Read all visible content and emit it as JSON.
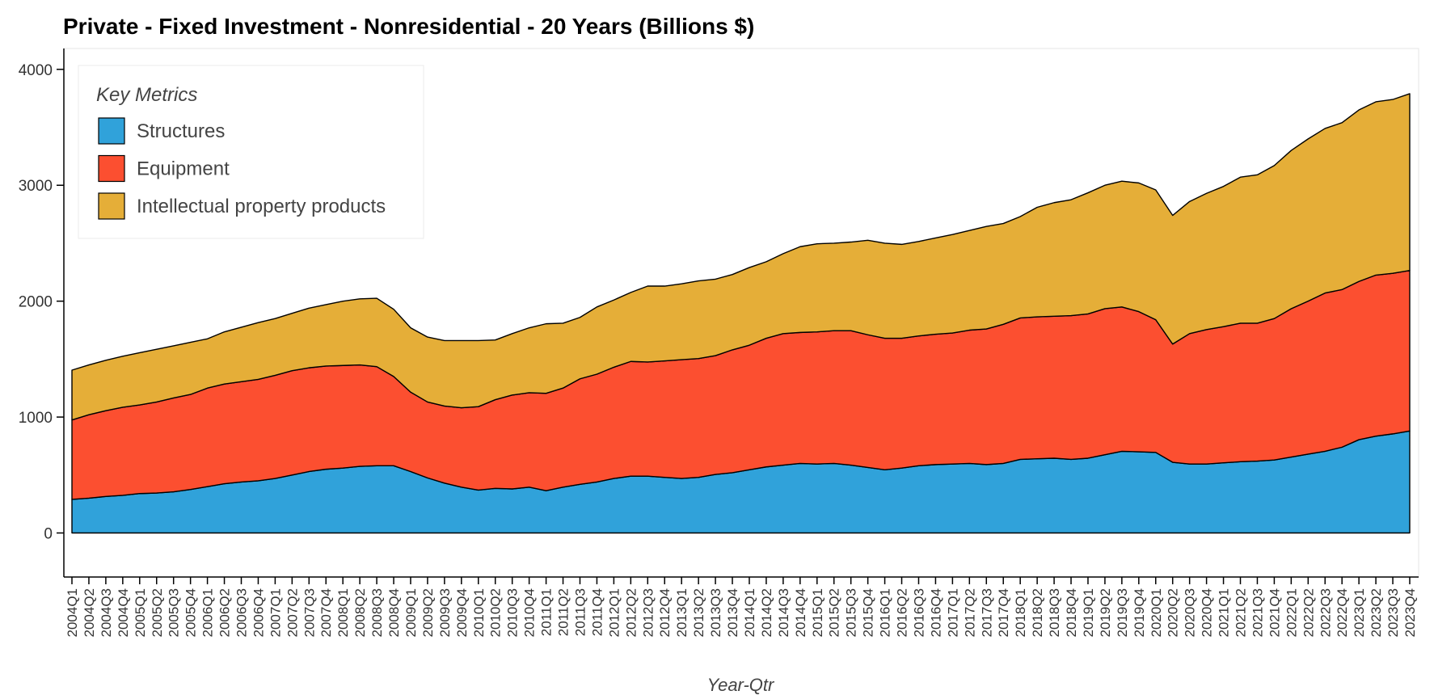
{
  "chart_data": {
    "type": "stacked_area",
    "title": "Private - Fixed Investment - Nonresidential - 20 Years (Billions $)",
    "x_label": "Year-Qtr",
    "legend_title": "Key Metrics",
    "legend_position": "top-left",
    "ylim": [
      -380,
      4180
    ],
    "yticks": [
      0,
      1000,
      2000,
      3000,
      4000
    ],
    "categories": [
      "2004Q1",
      "2004Q2",
      "2004Q3",
      "2004Q4",
      "2005Q1",
      "2005Q2",
      "2005Q3",
      "2005Q4",
      "2006Q1",
      "2006Q2",
      "2006Q3",
      "2006Q4",
      "2007Q1",
      "2007Q2",
      "2007Q3",
      "2007Q4",
      "2008Q1",
      "2008Q2",
      "2008Q3",
      "2008Q4",
      "2009Q1",
      "2009Q2",
      "2009Q3",
      "2009Q4",
      "2010Q1",
      "2010Q2",
      "2010Q3",
      "2010Q4",
      "2011Q1",
      "2011Q2",
      "2011Q3",
      "2011Q4",
      "2012Q1",
      "2012Q2",
      "2012Q3",
      "2012Q4",
      "2013Q1",
      "2013Q2",
      "2013Q3",
      "2013Q4",
      "2014Q1",
      "2014Q2",
      "2014Q3",
      "2014Q4",
      "2015Q1",
      "2015Q2",
      "2015Q3",
      "2015Q4",
      "2016Q1",
      "2016Q2",
      "2016Q3",
      "2016Q4",
      "2017Q1",
      "2017Q2",
      "2017Q3",
      "2017Q4",
      "2018Q1",
      "2018Q2",
      "2018Q3",
      "2018Q4",
      "2019Q1",
      "2019Q2",
      "2019Q3",
      "2019Q4",
      "2020Q1",
      "2020Q2",
      "2020Q3",
      "2020Q4",
      "2021Q1",
      "2021Q2",
      "2021Q3",
      "2021Q4",
      "2022Q1",
      "2022Q2",
      "2022Q3",
      "2022Q4",
      "2023Q1",
      "2023Q2",
      "2023Q3",
      "2023Q4"
    ],
    "series": [
      {
        "name": "Structures",
        "color": "#30a2da",
        "values": [
          290,
          300,
          315,
          325,
          340,
          345,
          355,
          375,
          400,
          425,
          440,
          450,
          470,
          500,
          530,
          550,
          560,
          575,
          580,
          580,
          530,
          475,
          430,
          395,
          370,
          385,
          380,
          395,
          365,
          395,
          420,
          440,
          470,
          490,
          490,
          480,
          470,
          480,
          505,
          520,
          545,
          570,
          585,
          600,
          595,
          600,
          585,
          565,
          545,
          560,
          580,
          590,
          595,
          600,
          590,
          600,
          635,
          640,
          645,
          635,
          645,
          675,
          705,
          700,
          695,
          610,
          595,
          595,
          605,
          615,
          620,
          630,
          655,
          680,
          705,
          740,
          805,
          835,
          855,
          880
        ]
      },
      {
        "name": "Equipment",
        "color": "#fc4f30",
        "values": [
          685,
          720,
          740,
          760,
          765,
          785,
          810,
          820,
          850,
          860,
          865,
          875,
          890,
          900,
          895,
          890,
          885,
          875,
          855,
          770,
          685,
          655,
          665,
          685,
          720,
          765,
          810,
          815,
          840,
          855,
          910,
          930,
          960,
          990,
          985,
          1005,
          1025,
          1025,
          1025,
          1060,
          1075,
          1110,
          1135,
          1130,
          1140,
          1145,
          1160,
          1145,
          1135,
          1120,
          1120,
          1125,
          1130,
          1150,
          1170,
          1200,
          1220,
          1225,
          1225,
          1240,
          1245,
          1260,
          1245,
          1210,
          1145,
          1020,
          1125,
          1160,
          1175,
          1195,
          1190,
          1220,
          1280,
          1320,
          1365,
          1360,
          1365,
          1390,
          1385,
          1385
        ]
      },
      {
        "name": "Intellectual property products",
        "color": "#e5ae38",
        "values": [
          430,
          430,
          435,
          440,
          450,
          455,
          450,
          450,
          425,
          450,
          470,
          490,
          490,
          495,
          515,
          530,
          555,
          570,
          590,
          580,
          555,
          560,
          565,
          580,
          570,
          515,
          530,
          560,
          600,
          560,
          530,
          580,
          580,
          595,
          655,
          645,
          655,
          670,
          660,
          650,
          670,
          660,
          690,
          740,
          760,
          755,
          765,
          815,
          820,
          810,
          815,
          830,
          850,
          860,
          885,
          870,
          875,
          945,
          980,
          1000,
          1045,
          1065,
          1085,
          1110,
          1120,
          1110,
          1140,
          1175,
          1210,
          1260,
          1280,
          1320,
          1365,
          1400,
          1420,
          1440,
          1480,
          1495,
          1500,
          1525
        ]
      }
    ]
  }
}
